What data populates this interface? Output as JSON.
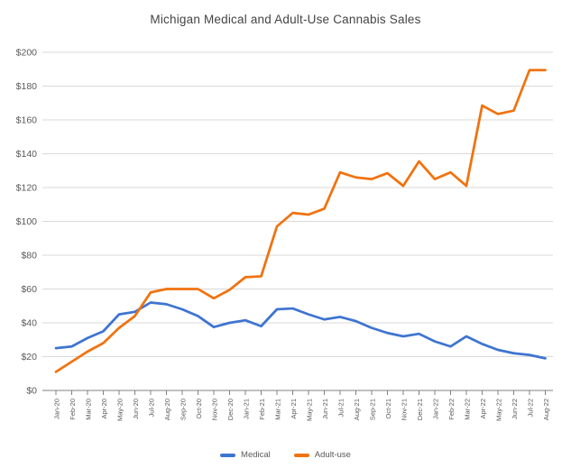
{
  "chart_data": {
    "type": "line",
    "title": "Michigan Medical and Adult-Use Cannabis Sales",
    "xlabel": "",
    "ylabel": "",
    "ylim": [
      0,
      200
    ],
    "ystep": 20,
    "y_tick_labels": [
      "$0",
      "$20",
      "$40",
      "$60",
      "$80",
      "$100",
      "$120",
      "$140",
      "$160",
      "$180",
      "$200"
    ],
    "grid": "horizontal",
    "legend_position": "bottom-center",
    "categories": [
      "Jan-20",
      "Feb-20",
      "Mar-20",
      "Apr-20",
      "May-20",
      "Jun-20",
      "Jul-20",
      "Aug-20",
      "Sep-20",
      "Oct-20",
      "Nov-20",
      "Dec-20",
      "Jan-21",
      "Feb-21",
      "Mar-21",
      "Apr-21",
      "May-21",
      "Jun-21",
      "Jul-21",
      "Aug-21",
      "Sep-21",
      "Oct-21",
      "Nov-21",
      "Dec-21",
      "Jan-22",
      "Feb-22",
      "Mar-22",
      "Apr-22",
      "May-22",
      "Jun-22",
      "Jul-22",
      "Aug-22"
    ],
    "series": [
      {
        "name": "Medical",
        "color": "#3E74D1",
        "values": [
          25,
          26,
          31,
          35,
          45,
          46.5,
          52,
          51,
          48,
          44,
          37.5,
          40,
          41.5,
          38,
          48,
          48.5,
          45,
          42,
          43.5,
          41,
          37,
          34,
          32,
          33.5,
          29,
          26,
          32,
          27.5,
          24,
          22,
          21,
          19
        ]
      },
      {
        "name": "Adult-use",
        "color": "#F1720E",
        "values": [
          11,
          17,
          23,
          28,
          37,
          44,
          58,
          60,
          60,
          60,
          54.5,
          59.5,
          67,
          67.5,
          97,
          105,
          104,
          107.5,
          129,
          126,
          125,
          128.5,
          121,
          135.5,
          125,
          129,
          121,
          168.5,
          163.5,
          165.5,
          189.5,
          189.5
        ]
      }
    ]
  },
  "colors": {
    "background": "#FFFFFF",
    "title_text": "#444444",
    "axis_text": "#595959",
    "gridline": "#D9D9D9",
    "axis_line": "#808080"
  }
}
